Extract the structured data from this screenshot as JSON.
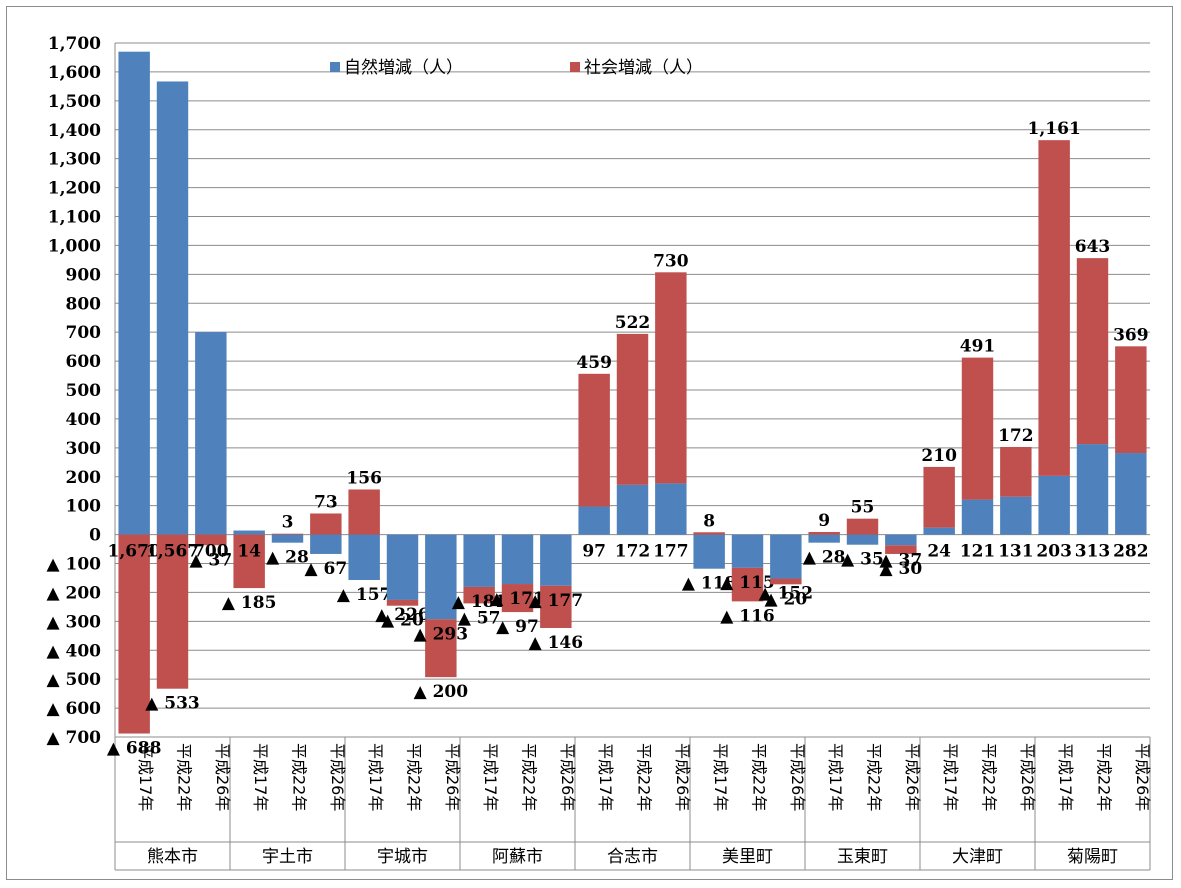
{
  "chart_data": {
    "type": "bar",
    "stacked": true,
    "ylim": [
      -700,
      1700
    ],
    "ytick_step": 100,
    "negative_prefix": "▲ ",
    "grid": true,
    "legend_position": "top",
    "series": [
      {
        "name": "自然増減（人）",
        "color": "#4f81bd"
      },
      {
        "name": "社会増減（人）",
        "color": "#c0504d"
      }
    ],
    "periods": [
      "平成17年",
      "平成22年",
      "平成26年"
    ],
    "cities": [
      {
        "name": "熊本市",
        "natural": [
          1670,
          1567,
          700
        ],
        "social": [
          -688,
          -533,
          -37
        ]
      },
      {
        "name": "宇土市",
        "natural": [
          14,
          -28,
          -67
        ],
        "social": [
          -185,
          3,
          73
        ]
      },
      {
        "name": "宇城市",
        "natural": [
          -157,
          -226,
          -293
        ],
        "social": [
          156,
          -20,
          -200
        ]
      },
      {
        "name": "阿蘇市",
        "natural": [
          -181,
          -171,
          -177
        ],
        "social": [
          -57,
          -97,
          -146
        ]
      },
      {
        "name": "合志市",
        "natural": [
          97,
          172,
          177
        ],
        "social": [
          459,
          522,
          730
        ]
      },
      {
        "name": "美里町",
        "natural": [
          -118,
          -115,
          -152
        ],
        "social": [
          8,
          -116,
          -20
        ]
      },
      {
        "name": "玉東町",
        "natural": [
          -28,
          -35,
          -37
        ],
        "social": [
          9,
          55,
          -30
        ]
      },
      {
        "name": "大津町",
        "natural": [
          24,
          121,
          131
        ],
        "social": [
          210,
          491,
          172
        ]
      },
      {
        "name": "菊陽町",
        "natural": [
          203,
          313,
          282
        ],
        "social": [
          1161,
          643,
          369
        ]
      }
    ]
  }
}
